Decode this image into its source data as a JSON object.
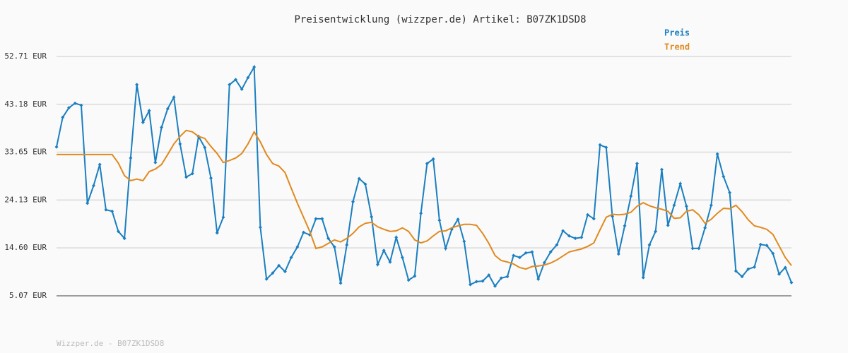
{
  "chart_data": {
    "type": "line",
    "title": "Preisentwicklung (wizzper.de) Artikel: B07ZK1DSD8",
    "footer": "Wizzper.de - B07ZK1DSD8",
    "ylim": [
      5.07,
      52.71
    ],
    "yticks": [
      {
        "value": 5.07,
        "label": "5.07 EUR"
      },
      {
        "value": 14.6,
        "label": "14.60 EUR"
      },
      {
        "value": 24.13,
        "label": "24.13 EUR"
      },
      {
        "value": 33.65,
        "label": "33.65 EUR"
      },
      {
        "value": 43.18,
        "label": "43.18 EUR"
      },
      {
        "value": 52.71,
        "label": "52.71 EUR"
      }
    ],
    "grid": true,
    "legend": "top-right",
    "series": [
      {
        "name": "Preis",
        "color": "#1b7fc0",
        "markers": true,
        "values": [
          34.7,
          40.6,
          42.5,
          43.4,
          43.0,
          23.5,
          27.0,
          31.2,
          22.2,
          21.9,
          17.9,
          16.5,
          32.5,
          47.1,
          39.6,
          41.9,
          31.6,
          38.6,
          42.3,
          44.6,
          35.3,
          28.7,
          29.4,
          36.8,
          34.6,
          28.5,
          17.6,
          20.7,
          47.1,
          48.1,
          46.2,
          48.5,
          50.6,
          18.7,
          8.4,
          9.6,
          11.1,
          9.9,
          12.7,
          14.8,
          17.7,
          17.2,
          20.4,
          20.4,
          16.5,
          14.8,
          7.6,
          15.2,
          23.8,
          28.4,
          27.3,
          20.8,
          11.3,
          14.1,
          11.8,
          16.7,
          12.7,
          8.2,
          9.0,
          21.5,
          31.4,
          32.3,
          20.1,
          14.5,
          18.3,
          20.3,
          15.9,
          7.3,
          7.9,
          8.0,
          9.2,
          7.0,
          8.6,
          8.9,
          13.1,
          12.7,
          13.6,
          13.8,
          8.4,
          11.7,
          13.8,
          15.2,
          18.0,
          17.0,
          16.5,
          16.7,
          21.2,
          20.4,
          35.1,
          34.6,
          20.9,
          13.4,
          19.0,
          24.9,
          31.4,
          8.7,
          15.2,
          17.9,
          30.2,
          19.1,
          23.1,
          27.4,
          22.9,
          14.5,
          14.5,
          18.6,
          23.1,
          33.3,
          28.8,
          25.6,
          10.0,
          8.9,
          10.4,
          10.8,
          15.3,
          15.1,
          13.5,
          9.4,
          10.7,
          7.7
        ]
      },
      {
        "name": "Trend",
        "color": "#e08a1e",
        "markers": false,
        "values": [
          33.2,
          33.2,
          33.2,
          33.2,
          33.2,
          33.2,
          33.2,
          33.2,
          33.2,
          33.2,
          31.5,
          29.0,
          28.0,
          28.3,
          28.0,
          29.8,
          30.3,
          31.2,
          33.2,
          35.3,
          36.8,
          38.0,
          37.7,
          36.8,
          36.4,
          34.8,
          33.4,
          31.6,
          32.0,
          32.5,
          33.4,
          35.3,
          37.7,
          35.7,
          33.2,
          31.4,
          30.9,
          29.6,
          26.5,
          23.5,
          20.7,
          17.9,
          14.5,
          14.8,
          15.5,
          16.2,
          15.8,
          16.5,
          17.5,
          18.8,
          19.5,
          19.7,
          18.8,
          18.3,
          17.9,
          18.0,
          18.6,
          17.9,
          16.2,
          15.6,
          16.0,
          17.0,
          17.9,
          18.0,
          18.6,
          19.0,
          19.3,
          19.3,
          19.1,
          17.5,
          15.5,
          13.1,
          12.1,
          11.8,
          11.4,
          10.7,
          10.4,
          10.9,
          11.0,
          11.2,
          11.6,
          12.2,
          13.0,
          13.8,
          14.1,
          14.4,
          14.9,
          15.6,
          18.2,
          20.7,
          21.3,
          21.2,
          21.3,
          21.7,
          22.9,
          23.6,
          23.0,
          22.6,
          22.3,
          21.9,
          20.5,
          20.6,
          21.9,
          22.2,
          21.2,
          19.5,
          20.3,
          21.5,
          22.5,
          22.4,
          23.1,
          21.8,
          20.2,
          19.0,
          18.7,
          18.3,
          17.3,
          15.0,
          12.7,
          11.1
        ]
      }
    ]
  }
}
